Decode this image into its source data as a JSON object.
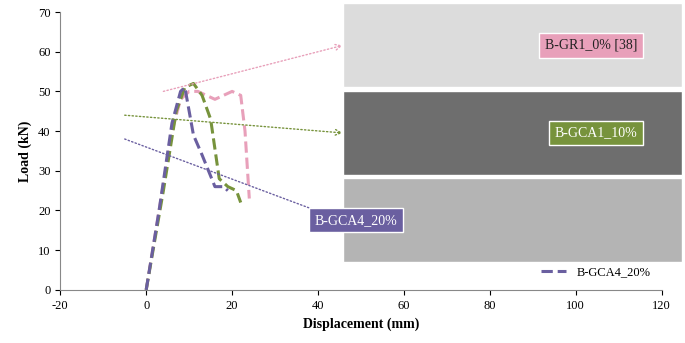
{
  "chart_data": {
    "type": "line",
    "x_label": "Displacement (mm)",
    "y_label": "Load (kN)",
    "series": [
      {
        "name": "B-GR1_0%",
        "color": "#e8a0ba",
        "line_style": "dashed",
        "x": [
          0,
          3,
          6,
          8,
          10,
          12,
          14,
          16,
          18,
          20,
          22,
          23,
          24
        ],
        "values": [
          0,
          20,
          40,
          48,
          50,
          50,
          49,
          48,
          49,
          50,
          49,
          40,
          23
        ]
      },
      {
        "name": "B-GCA1_10%",
        "color": "#77933c",
        "line_style": "dashed",
        "x": [
          0,
          4,
          7,
          9,
          11,
          13,
          15,
          17,
          19,
          21,
          22
        ],
        "values": [
          0,
          25,
          45,
          51,
          52,
          49,
          43,
          28,
          26,
          25,
          22
        ]
      },
      {
        "name": "B-GCA4_20%",
        "color": "#6a5fa0",
        "line_style": "dashed",
        "x": [
          0,
          3,
          6,
          8,
          9,
          11,
          13,
          16,
          18,
          19
        ],
        "values": [
          0,
          20,
          42,
          50,
          51,
          39,
          34,
          26,
          26,
          25
        ]
      }
    ],
    "annotations": [
      "B-GR1_0% [38]",
      "B-GCA1_10%",
      "B-GCA4_20%"
    ],
    "xlim": [
      -20,
      120
    ],
    "xticks": [
      -20,
      0,
      20,
      40,
      60,
      80,
      100,
      120
    ],
    "ylim": [
      0,
      70
    ],
    "yticks": [
      0,
      10,
      20,
      30,
      40,
      50,
      60,
      70
    ],
    "grid": false,
    "legend": "lower right"
  }
}
